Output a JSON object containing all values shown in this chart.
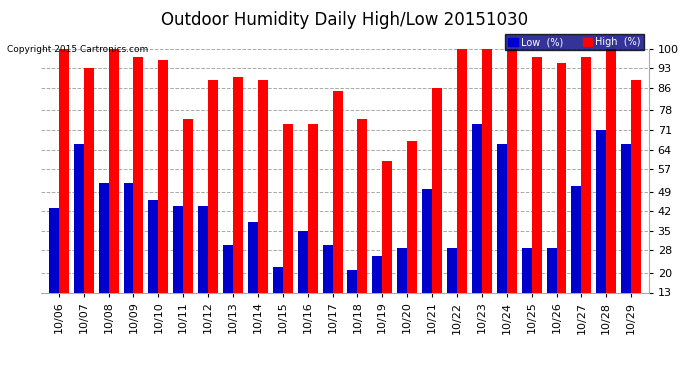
{
  "title": "Outdoor Humidity Daily High/Low 20151030",
  "copyright": "Copyright 2015 Cartronics.com",
  "dates": [
    "10/06",
    "10/07",
    "10/08",
    "10/09",
    "10/10",
    "10/11",
    "10/12",
    "10/13",
    "10/14",
    "10/15",
    "10/16",
    "10/17",
    "10/18",
    "10/19",
    "10/20",
    "10/21",
    "10/22",
    "10/23",
    "10/24",
    "10/25",
    "10/26",
    "10/27",
    "10/28",
    "10/29"
  ],
  "high": [
    100,
    93,
    100,
    97,
    96,
    75,
    89,
    90,
    89,
    73,
    73,
    85,
    75,
    60,
    67,
    86,
    100,
    100,
    100,
    97,
    95,
    97,
    100,
    89
  ],
  "low": [
    43,
    66,
    52,
    52,
    46,
    44,
    44,
    30,
    38,
    22,
    35,
    30,
    21,
    26,
    29,
    50,
    29,
    73,
    66,
    29,
    29,
    51,
    71,
    66
  ],
  "high_color": "#ff0000",
  "low_color": "#0000cc",
  "background_color": "#ffffff",
  "plot_bg_color": "#ffffff",
  "grid_color": "#aaaaaa",
  "ylim_min": 13,
  "ylim_max": 100,
  "yticks": [
    13,
    20,
    28,
    35,
    42,
    49,
    57,
    64,
    71,
    78,
    86,
    93,
    100
  ],
  "bar_width": 0.4,
  "title_fontsize": 12,
  "tick_fontsize": 8,
  "legend_low_label": "Low  (%)",
  "legend_high_label": "High  (%)"
}
